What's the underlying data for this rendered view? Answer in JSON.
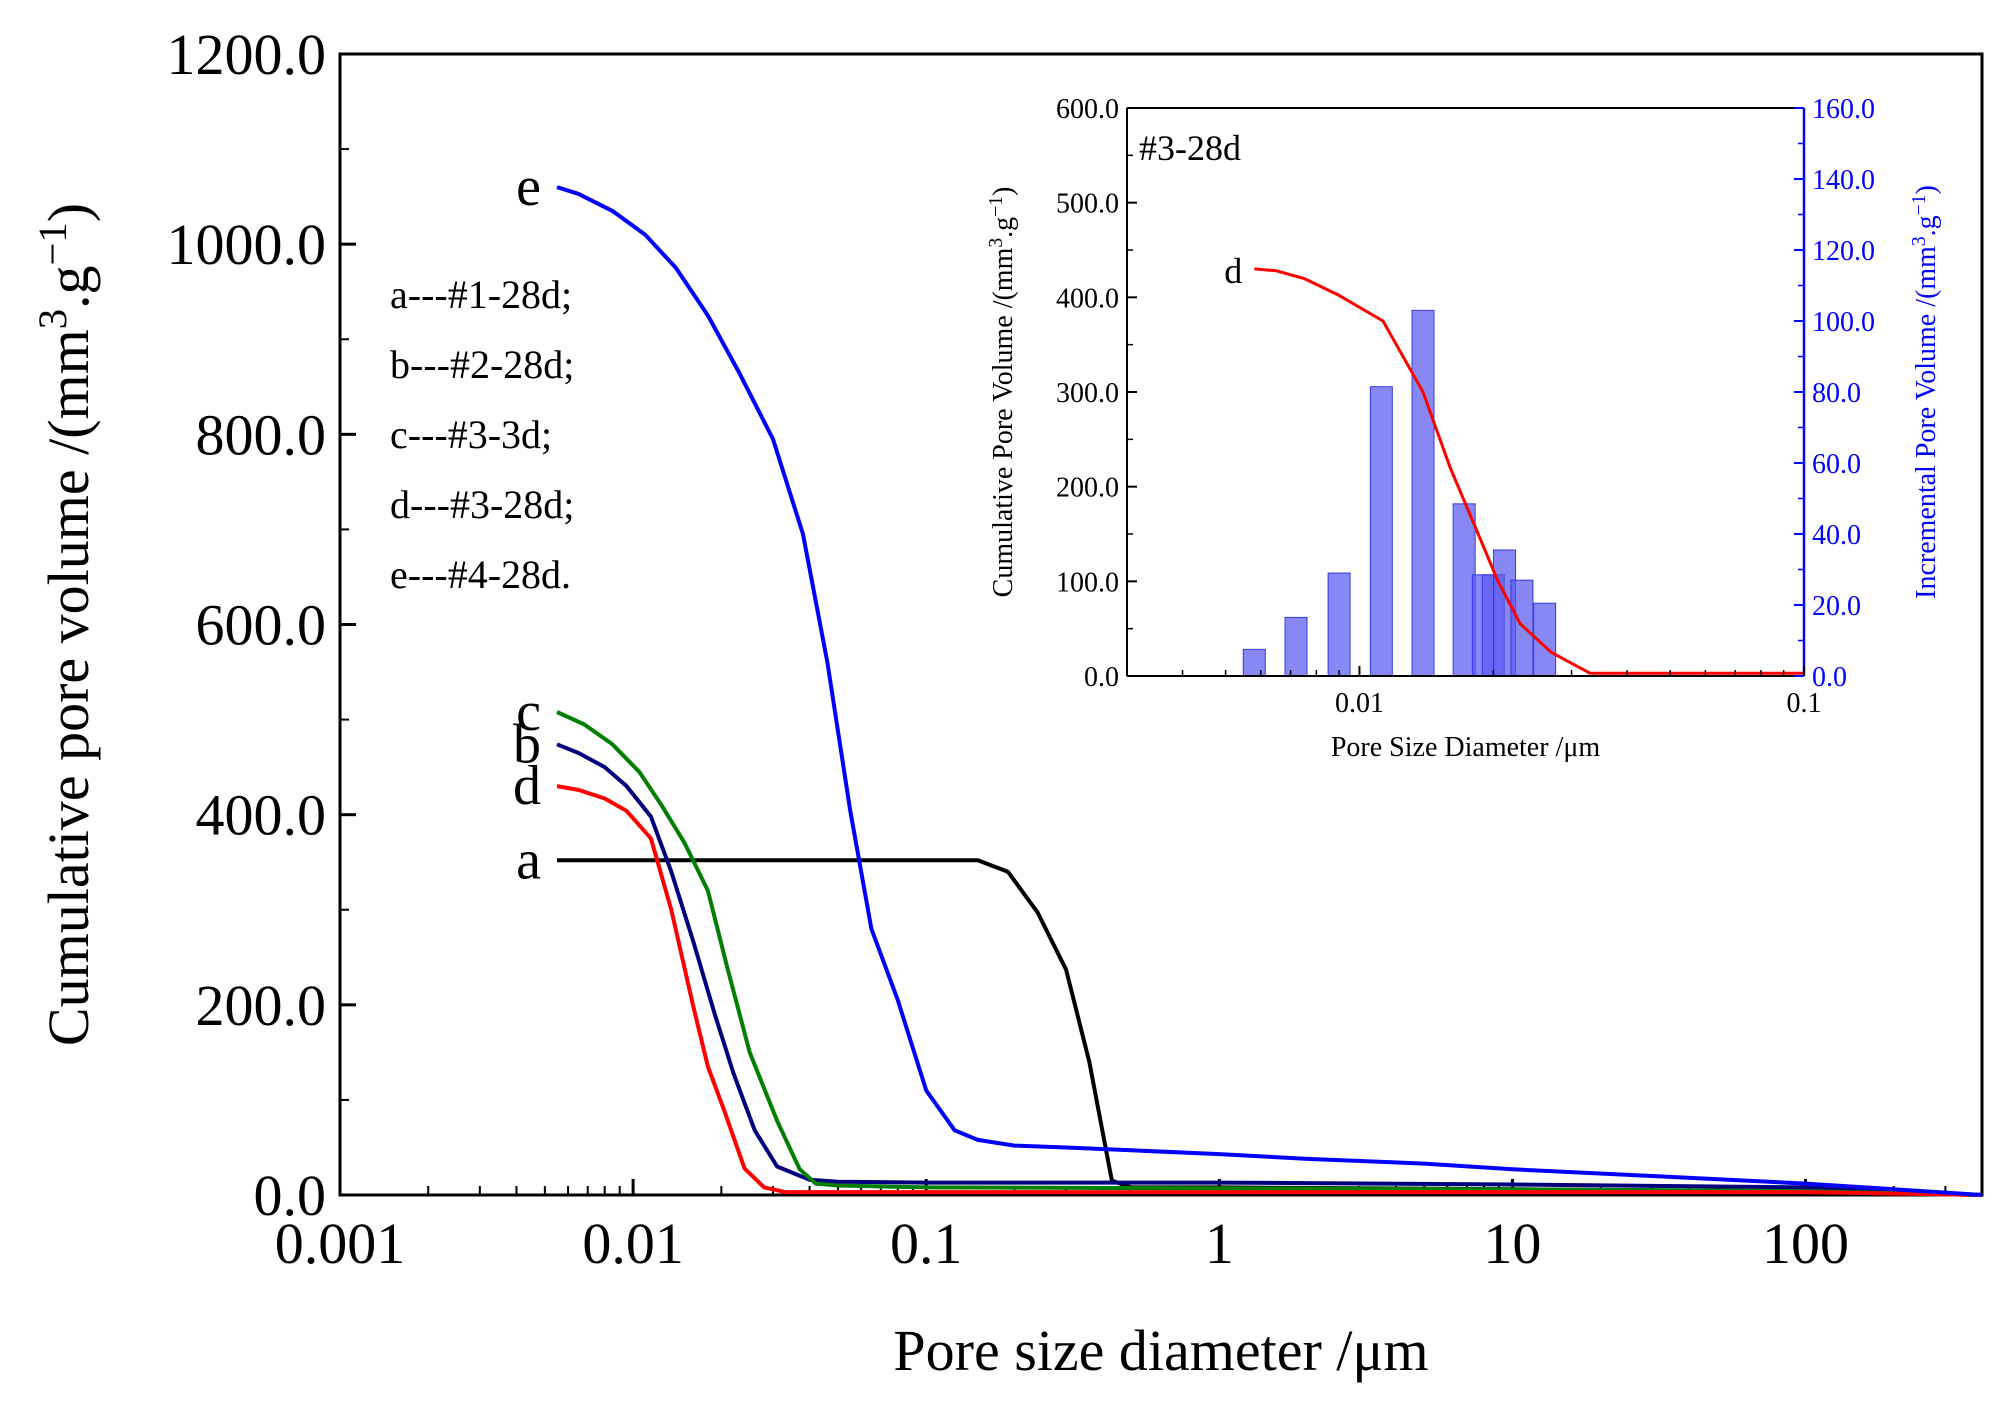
{
  "chart_data": [
    {
      "id": "main",
      "type": "line",
      "xscale": "log",
      "xlim": [
        0.001,
        400
      ],
      "ylim": [
        0,
        1200
      ],
      "xlabel": "Pore size diameter /μm",
      "ylabel": "Cumulative pore volume /(mm3.g-1)",
      "ylabel_parts": {
        "pre": "Cumulative pore volume /(mm",
        "sup1": "3",
        "mid": ".g",
        "sup2": "-1",
        "post": ")"
      },
      "xticks": [
        0.001,
        0.01,
        0.1,
        1,
        10,
        100
      ],
      "xtick_labels": [
        "0.001",
        "0.01",
        "0.1",
        "1",
        "10",
        "100"
      ],
      "yticks": [
        0,
        200,
        400,
        600,
        800,
        1000,
        1200
      ],
      "ytick_labels": [
        "0.0",
        "200.0",
        "400.0",
        "600.0",
        "800.0",
        "1000.0",
        "1200.0"
      ],
      "series": [
        {
          "name": "a",
          "color": "#000000",
          "x": [
            0.0055,
            0.15,
            0.19,
            0.24,
            0.3,
            0.36,
            0.43,
            0.5,
            1,
            10,
            100,
            400
          ],
          "y": [
            352,
            352,
            340,
            297,
            237,
            140,
            15,
            8,
            8,
            6,
            4,
            0
          ]
        },
        {
          "name": "b",
          "color": "#00007f",
          "x": [
            0.0055,
            0.0065,
            0.008,
            0.0095,
            0.0115,
            0.0135,
            0.016,
            0.019,
            0.022,
            0.026,
            0.031,
            0.04,
            0.05,
            0.1,
            1,
            10,
            100,
            400
          ],
          "y": [
            474,
            465,
            450,
            430,
            398,
            340,
            268,
            190,
            128,
            68,
            30,
            16,
            14,
            13,
            13,
            11,
            8,
            0
          ]
        },
        {
          "name": "c",
          "color": "#007f00",
          "x": [
            0.0055,
            0.0068,
            0.0085,
            0.0105,
            0.0125,
            0.015,
            0.018,
            0.021,
            0.025,
            0.031,
            0.037,
            0.042,
            0.05,
            0.1,
            1,
            10,
            100,
            400
          ],
          "y": [
            508,
            495,
            474,
            445,
            410,
            370,
            320,
            238,
            150,
            78,
            27,
            12,
            10,
            8,
            7,
            6,
            4,
            0
          ]
        },
        {
          "name": "d",
          "color": "#ff0000",
          "x": [
            0.0055,
            0.0065,
            0.008,
            0.0095,
            0.0115,
            0.0135,
            0.016,
            0.018,
            0.0205,
            0.024,
            0.028,
            0.033,
            0.05,
            0.1,
            1,
            10,
            100,
            400
          ],
          "y": [
            430,
            426,
            417,
            404,
            375,
            300,
            200,
            135,
            88,
            28,
            8,
            3,
            3,
            3,
            3,
            3,
            3,
            0
          ]
        },
        {
          "name": "e",
          "color": "#0000ff",
          "x": [
            0.0055,
            0.0065,
            0.0085,
            0.011,
            0.014,
            0.018,
            0.023,
            0.03,
            0.038,
            0.046,
            0.055,
            0.065,
            0.08,
            0.1,
            0.125,
            0.15,
            0.2,
            0.3,
            0.5,
            1,
            2,
            5,
            10,
            30,
            100,
            200,
            400
          ],
          "y": [
            1060,
            1053,
            1035,
            1010,
            975,
            925,
            865,
            795,
            695,
            560,
            405,
            280,
            205,
            110,
            68,
            58,
            52,
            50,
            47,
            43,
            38,
            33,
            27,
            20,
            12,
            6,
            0
          ]
        }
      ],
      "curve_labels": [
        "a",
        "b",
        "c",
        "d",
        "e"
      ],
      "legend_entries": [
        "a---#1-28d;",
        "b---#2-28d;",
        "c---#3-3d;",
        "d---#3-28d;",
        "e---#4-28d."
      ]
    },
    {
      "id": "inset",
      "type": "bar+line",
      "title": "#3-28d",
      "xscale": "log",
      "xlim": [
        0.003,
        0.1
      ],
      "ylim_left": [
        0,
        600
      ],
      "ylim_right": [
        0,
        160
      ],
      "xlabel": "Pore Size Diameter /μm",
      "ylabel_left": "Cumulative Pore Volume /(mm3.g-1)",
      "ylabel_left_parts": {
        "pre": "Cumulative Pore Volume /(mm",
        "sup1": "3",
        "mid": ".g",
        "sup2": "-1",
        "post": ")"
      },
      "ylabel_right": "Incremental Pore Volume /(mm3.g-1)",
      "ylabel_right_parts": {
        "pre": "Incremental Pore Volume /(mm",
        "sup1": "3",
        "mid": ".g",
        "sup2": "-1",
        "post": ")"
      },
      "xticks": [
        0.01,
        0.1
      ],
      "xtick_labels": [
        "0.01",
        "0.1"
      ],
      "yticks_left": [
        0,
        100,
        200,
        300,
        400,
        500,
        600
      ],
      "ytick_labels_left": [
        "0.0",
        "100.0",
        "200.0",
        "300.0",
        "400.0",
        "500.0",
        "600.0"
      ],
      "yticks_right": [
        0,
        20,
        40,
        60,
        80,
        100,
        120,
        140,
        160
      ],
      "ytick_labels_right": [
        "0.0",
        "20.0",
        "40.0",
        "60.0",
        "80.0",
        "100.0",
        "120.0",
        "140.0",
        "160.0"
      ],
      "left_axis_color": "#000000",
      "right_axis_color": "#0000ff",
      "line": {
        "name": "d",
        "color": "#ff0000",
        "x": [
          0.0058,
          0.0065,
          0.0075,
          0.009,
          0.0113,
          0.0139,
          0.016,
          0.0185,
          0.0205,
          0.023,
          0.027,
          0.033,
          0.05,
          0.1
        ],
        "y": [
          430,
          428,
          420,
          402,
          375,
          300,
          220,
          150,
          100,
          55,
          25,
          3,
          3,
          3
        ]
      },
      "bars": {
        "color": "#5a5af0",
        "x": [
          0.0058,
          0.0072,
          0.009,
          0.0112,
          0.0139,
          0.0172,
          0.019,
          0.02,
          0.0212,
          0.0232,
          0.0261
        ],
        "values": [
          7.5,
          16.5,
          29,
          81.5,
          103,
          48.5,
          28.5,
          28.5,
          35.5,
          27,
          20.5
        ]
      }
    }
  ]
}
